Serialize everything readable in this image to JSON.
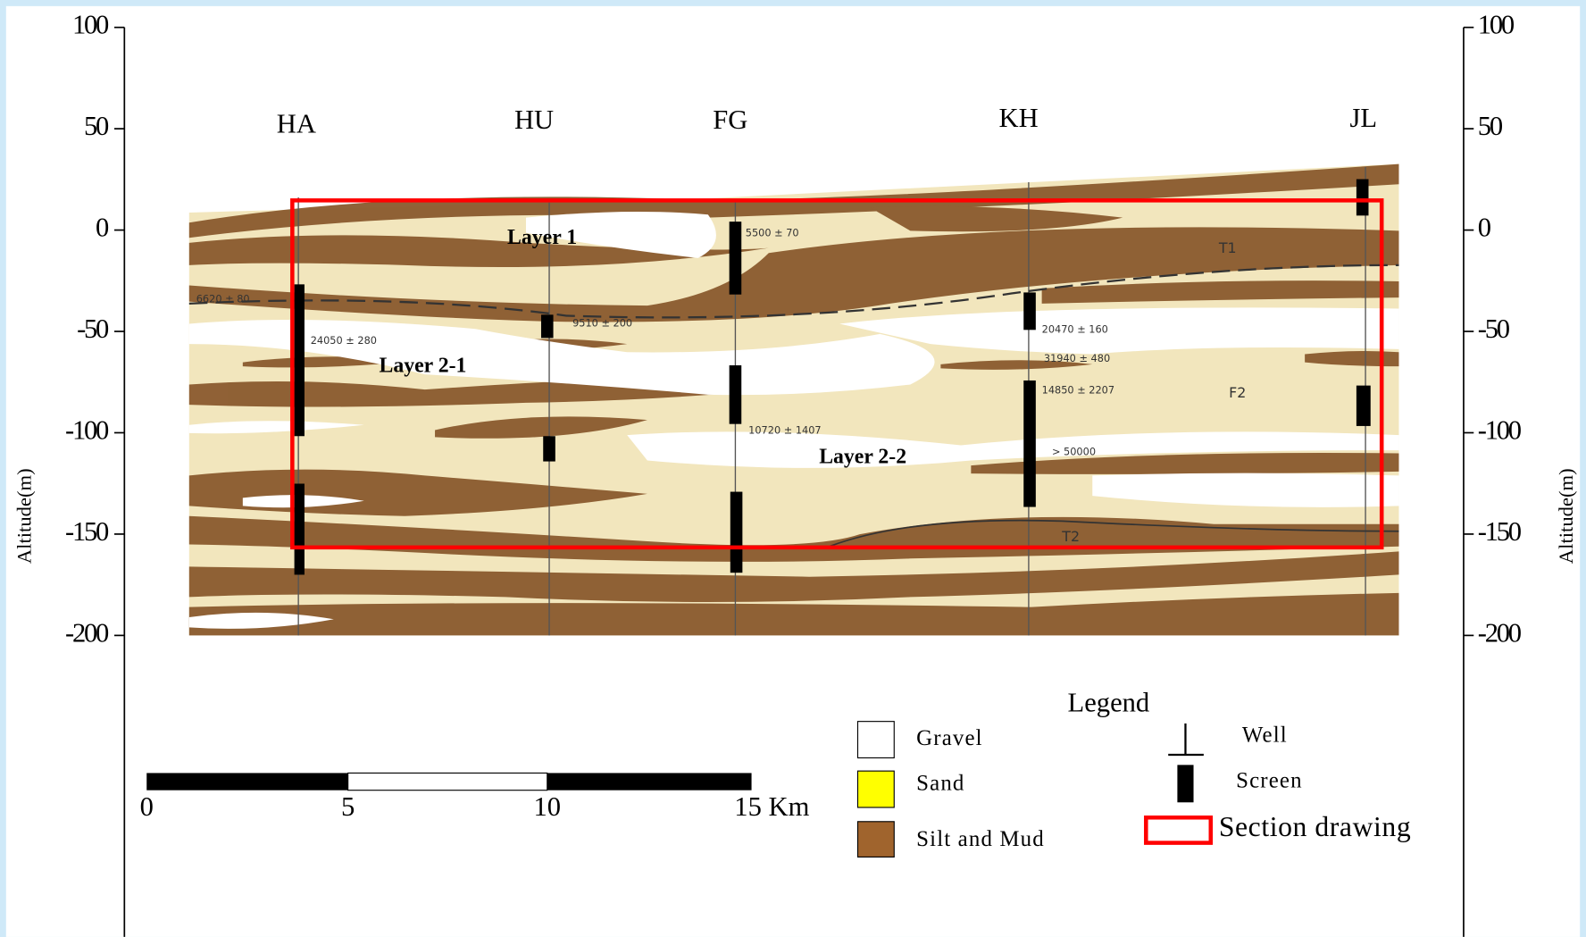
{
  "axis": {
    "title": "Altitude(m)",
    "ticks": [
      100,
      50,
      0,
      -50,
      -100,
      -150,
      -200
    ]
  },
  "wells": [
    "HA",
    "HU",
    "FG",
    "KH",
    "JL"
  ],
  "layers": [
    "Layer 1",
    "Layer 2-1",
    "Layer 2-2"
  ],
  "annotations": [
    "6620 ± 80",
    "24050 ± 280",
    "9510 ± 200",
    "5500 ± 70",
    "10720 ± 1407",
    "20470 ± 160",
    "31940 ± 480",
    "14850 ± 2207",
    "> 50000",
    "T1",
    "F2",
    "T2"
  ],
  "scale_bar": {
    "labels": [
      "0",
      "5",
      "10",
      "15 Km"
    ]
  },
  "legend": {
    "title": "Legend",
    "items": [
      "Gravel",
      "Sand",
      "Silt and Mud",
      "Well",
      "Screen",
      "Section drawing"
    ]
  }
}
